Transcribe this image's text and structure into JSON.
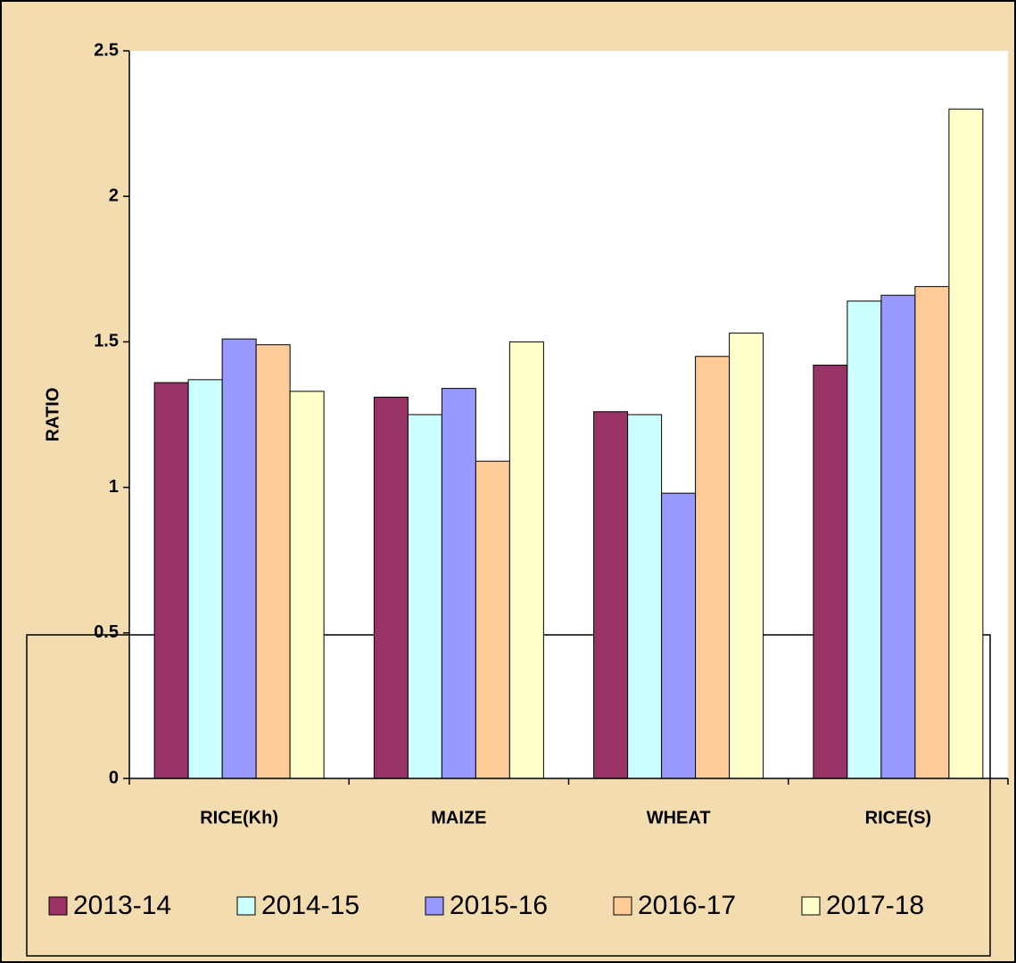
{
  "chart_data": {
    "type": "bar",
    "y_label": "RATIO",
    "categories": [
      "RICE(Kh)",
      "MAIZE",
      "WHEAT",
      "RICE(S)"
    ],
    "series": [
      {
        "name": "2013-14",
        "color": "#993366",
        "values": [
          1.36,
          1.31,
          1.26,
          1.42
        ]
      },
      {
        "name": "2014-15",
        "color": "#CCFFFF",
        "values": [
          1.37,
          1.25,
          1.25,
          1.64
        ]
      },
      {
        "name": "2015-16",
        "color": "#9999FF",
        "values": [
          1.51,
          1.34,
          0.98,
          1.66
        ]
      },
      {
        "name": "2016-17",
        "color": "#FFCC99",
        "values": [
          1.49,
          1.09,
          1.45,
          1.69
        ]
      },
      {
        "name": "2017-18",
        "color": "#FFFFCC",
        "values": [
          1.33,
          1.5,
          1.53,
          2.3
        ]
      }
    ],
    "ylim": [
      0,
      2.5
    ],
    "yticks": [
      0,
      0.5,
      1,
      1.5,
      2,
      2.5
    ],
    "grid": false,
    "legend": "bottom"
  }
}
